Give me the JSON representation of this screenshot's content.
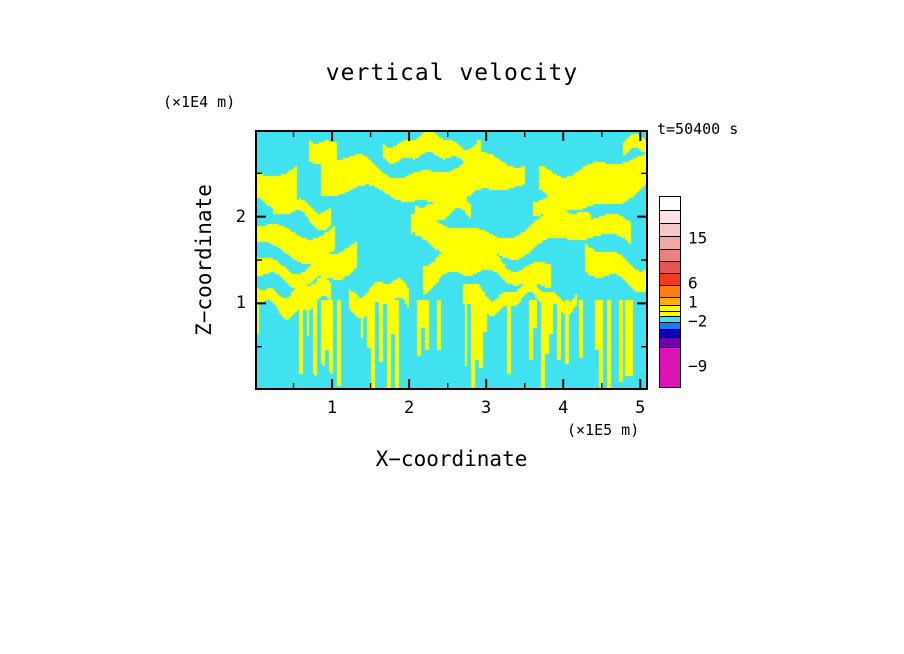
{
  "chart_data": {
    "type": "heatmap",
    "subtype": "two-level filled contour of a turbulent 2-D vertical-velocity field",
    "title": "vertical velocity",
    "time_label": "t=50400 s",
    "xlabel": "X−coordinate",
    "ylabel": "Z−coordinate",
    "x_unit_label": "(×1E5 m)",
    "z_unit_label": "(×1E4 m)",
    "xlim": [
      0,
      5.1
    ],
    "zlim": [
      0,
      3.0
    ],
    "x_major_ticks": [
      1,
      2,
      3,
      4,
      5
    ],
    "x_minor_ticks": [
      0.5,
      1.5,
      2.5,
      3.5,
      4.5
    ],
    "z_major_ticks": [
      1,
      2
    ],
    "z_minor_ticks": [
      0.5,
      1.5,
      2.5
    ],
    "grid": false,
    "legend_position": "colorbar-right",
    "field_colors": {
      "low": "#40E2F0",
      "high": "#FFFF00"
    },
    "field_description": "Only two contour levels appear in the plot: cyan (values roughly between −2 and 1) and yellow (values roughly between 1 and 6). Wavy horizontal yellow bands cross the full width near z≈1.4, 1.8 and 2.4 (×1E4 m); below z≈1 the yellow breaks into thin vertical plumes hanging toward the bottom edge over a cyan background.",
    "colorbar": {
      "labels": [
        {
          "text": "15",
          "offset": 42
        },
        {
          "text": "6",
          "offset": 87
        },
        {
          "text": "1",
          "offset": 106
        },
        {
          "text": "−2",
          "offset": 125
        },
        {
          "text": "−9",
          "offset": 170
        }
      ],
      "segments": [
        {
          "color": "#FFFFFF",
          "h": 13
        },
        {
          "color": "#FAE3E3",
          "h": 13
        },
        {
          "color": "#F6C8C8",
          "h": 13
        },
        {
          "color": "#F1A8A8",
          "h": 13
        },
        {
          "color": "#EC8383",
          "h": 12
        },
        {
          "color": "#E65454",
          "h": 12
        },
        {
          "color": "#EF3B1E",
          "h": 12
        },
        {
          "color": "#FF7F0E",
          "h": 12
        },
        {
          "color": "#FFB400",
          "h": 8
        },
        {
          "color": "#FFFF00",
          "h": 6
        },
        {
          "color": "#FFFF00",
          "h": 5
        },
        {
          "color": "#40E2F0",
          "h": 6
        },
        {
          "color": "#1E78FF",
          "h": 7
        },
        {
          "color": "#1400B4",
          "h": 8
        },
        {
          "color": "#6E00B4",
          "h": 10
        },
        {
          "color": "#DC14B4",
          "h": 40
        }
      ]
    },
    "render": {
      "background": "#40E2F0",
      "positive_color": "#FFFF00",
      "cell": 2,
      "bands": [
        {
          "z": 2.8,
          "th": 0.09,
          "cov": 0.5,
          "wl": 0.9,
          "amp": 0.06,
          "mask_freq": 2.2,
          "seed": 11
        },
        {
          "z": 2.42,
          "th": 0.17,
          "cov": 0.88,
          "wl": 2.0,
          "amp": 0.1,
          "mask_freq": 1.4,
          "seed": 23
        },
        {
          "z": 2.06,
          "th": 0.09,
          "cov": 0.55,
          "wl": 1.1,
          "amp": 0.09,
          "mask_freq": 2.6,
          "seed": 37
        },
        {
          "z": 1.8,
          "th": 0.15,
          "cov": 0.82,
          "wl": 2.4,
          "amp": 0.13,
          "mask_freq": 1.6,
          "seed": 47
        },
        {
          "z": 1.42,
          "th": 0.12,
          "cov": 0.72,
          "wl": 1.5,
          "amp": 0.11,
          "mask_freq": 2.0,
          "seed": 59
        },
        {
          "z": 1.08,
          "th": 0.1,
          "cov": 0.6,
          "wl": 0.9,
          "amp": 0.09,
          "mask_freq": 2.8,
          "seed": 71
        }
      ],
      "streaks": {
        "z_top": 1.05,
        "col_freq": 20,
        "on_fraction": 0.45,
        "min_h": 0.15,
        "max_h": 1.1,
        "seed": 91
      }
    }
  }
}
